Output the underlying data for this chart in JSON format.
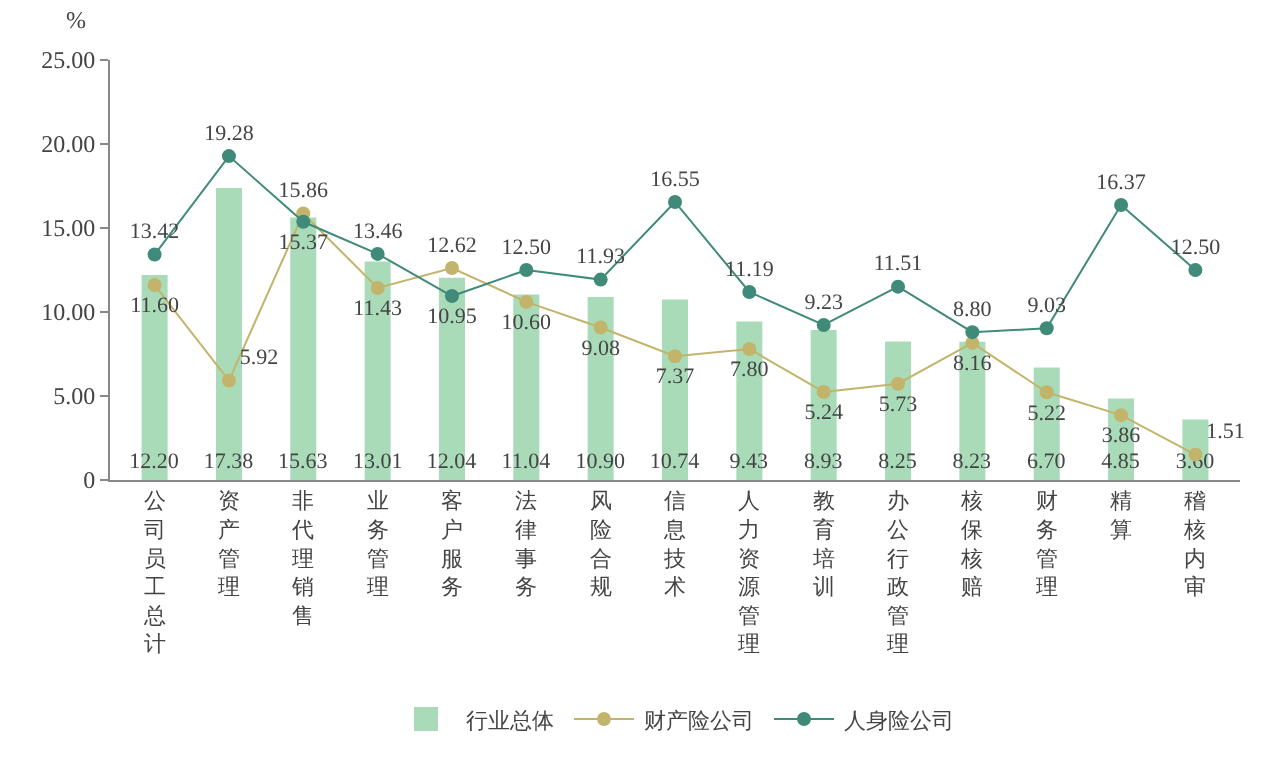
{
  "chart_data": {
    "type": "bar",
    "ylabel": "%",
    "categories": [
      "公司员工总计",
      "资产管理",
      "非代理销售",
      "业务管理",
      "客户服务",
      "法律事务",
      "风险合规",
      "信息技术",
      "人力资源管理",
      "教育培训",
      "办公行政管理",
      "核保核赔",
      "财务管理",
      "精算",
      "稽核内审"
    ],
    "series": [
      {
        "name": "行业总体",
        "color": "#a9dbb9",
        "values": [
          12.2,
          17.38,
          15.63,
          13.01,
          12.04,
          11.04,
          10.9,
          10.74,
          9.43,
          8.93,
          8.25,
          8.23,
          6.7,
          4.85,
          3.6
        ],
        "value_labels": [
          "12.20",
          "17.38",
          "15.63",
          "13.01",
          "12.04",
          "11.04",
          "10.90",
          "10.74",
          "9.43",
          "8.93",
          "8.25",
          "8.23",
          "6.70",
          "4.85",
          "3.60"
        ]
      },
      {
        "name": "财产险公司",
        "type": "line",
        "color": "#c2b46a",
        "values": [
          11.6,
          5.92,
          15.86,
          11.43,
          12.62,
          10.6,
          9.08,
          7.37,
          7.8,
          5.24,
          5.73,
          8.16,
          5.22,
          3.86,
          1.51
        ],
        "value_labels": [
          "11.60",
          "5.92",
          "15.86",
          "11.43",
          "12.62",
          "10.60",
          "9.08",
          "7.37",
          "7.80",
          "5.24",
          "5.73",
          "8.16",
          "5.22",
          "3.86",
          "1.51"
        ]
      },
      {
        "name": "人身险公司",
        "type": "line",
        "color": "#3f8a78",
        "values": [
          13.42,
          19.28,
          15.37,
          13.46,
          10.95,
          12.5,
          11.93,
          16.55,
          11.19,
          9.23,
          11.51,
          8.8,
          9.03,
          16.37,
          12.5
        ],
        "value_labels": [
          "13.42",
          "19.28",
          "15.37",
          "13.46",
          "10.95",
          "12.50",
          "11.93",
          "16.55",
          "11.19",
          "9.23",
          "11.51",
          "8.80",
          "9.03",
          "16.37",
          "12.50"
        ]
      }
    ],
    "ylim": [
      0,
      25
    ],
    "yticks": [
      0,
      {
        "value": 5,
        "label": "5.00"
      },
      {
        "value": 10,
        "label": "10.00"
      },
      {
        "value": 15,
        "label": "15.00"
      },
      {
        "value": 20,
        "label": "20.00"
      },
      {
        "value": 25,
        "label": "25.00"
      }
    ],
    "grid": false,
    "legend": "bottom",
    "marker": "circle",
    "line_style": "solid"
  }
}
